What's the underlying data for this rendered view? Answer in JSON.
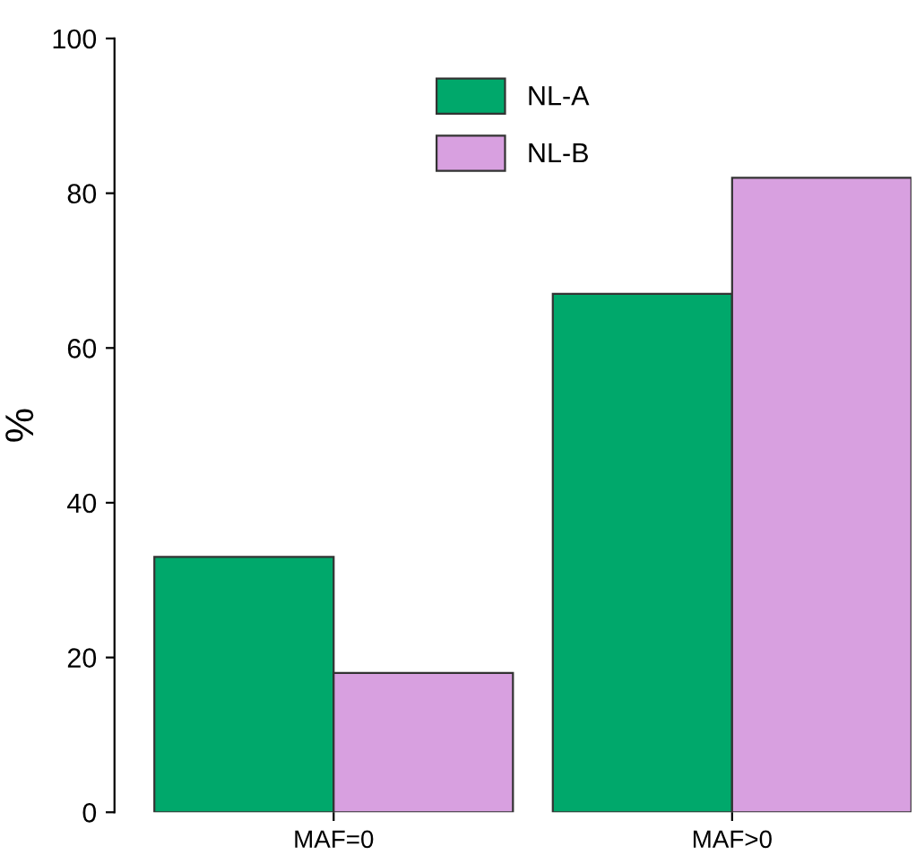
{
  "chart_data": {
    "type": "bar",
    "ylabel": "%",
    "categories": [
      "MAF=0",
      "MAF>0"
    ],
    "series": [
      {
        "name": "NL-A",
        "color": "#00a86b",
        "values": [
          33,
          67
        ]
      },
      {
        "name": "NL-B",
        "color": "#d8a0e0",
        "values": [
          18,
          82
        ]
      }
    ],
    "ylim": [
      0,
      100
    ],
    "yticks": [
      0,
      20,
      40,
      60,
      80,
      100
    ],
    "grid": false,
    "legend": "top"
  }
}
